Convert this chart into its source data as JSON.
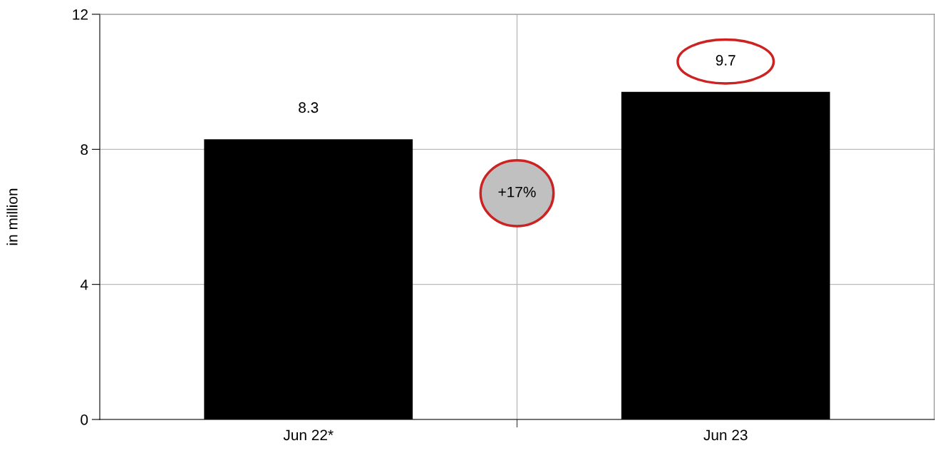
{
  "chart_data": {
    "type": "bar",
    "ylabel": "in million",
    "categories": [
      "Jun 22*",
      "Jun 23"
    ],
    "values": [
      8.3,
      9.7
    ],
    "color": "#000000",
    "ylim": [
      0,
      12
    ],
    "yticks": [
      0,
      4,
      8,
      12
    ],
    "grid": true,
    "data_labels": true,
    "annotations": [
      "+17%"
    ]
  }
}
